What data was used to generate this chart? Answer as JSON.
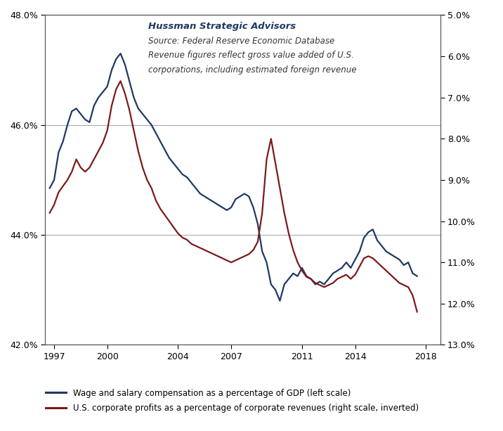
{
  "title_line1": "Hussman Strategic Advisors",
  "title_line2": "Source: Federal Reserve Economic Database",
  "title_line3": "Revenue figures reflect gross value added of U.S.",
  "title_line4": "corporations, including estimated foreign revenue",
  "left_ylim": [
    42.0,
    48.0
  ],
  "left_yticks": [
    42.0,
    44.0,
    46.0,
    48.0
  ],
  "right_yticks": [
    5.0,
    6.0,
    7.0,
    8.0,
    9.0,
    10.0,
    11.0,
    12.0,
    13.0
  ],
  "xticks": [
    1997,
    2000,
    2004,
    2007,
    2011,
    2014,
    2018
  ],
  "xlim": [
    1996.5,
    2018.8
  ],
  "blue_color": "#1F3864",
  "red_color": "#7B1A1A",
  "legend_label_blue": "Wage and salary compensation as a percentage of GDP (left scale)",
  "legend_label_red": "U.S. corporate profits as a percentage of corporate revenues (right scale, inverted)",
  "grid_color": "#AAAAAA",
  "bg_color": "#FFFFFF",
  "blue_data": {
    "x": [
      1996.75,
      1997.0,
      1997.25,
      1997.5,
      1997.75,
      1998.0,
      1998.25,
      1998.5,
      1998.75,
      1999.0,
      1999.25,
      1999.5,
      1999.75,
      2000.0,
      2000.25,
      2000.5,
      2000.75,
      2001.0,
      2001.25,
      2001.5,
      2001.75,
      2002.0,
      2002.25,
      2002.5,
      2002.75,
      2003.0,
      2003.25,
      2003.5,
      2003.75,
      2004.0,
      2004.25,
      2004.5,
      2004.75,
      2005.0,
      2005.25,
      2005.5,
      2005.75,
      2006.0,
      2006.25,
      2006.5,
      2006.75,
      2007.0,
      2007.25,
      2007.5,
      2007.75,
      2008.0,
      2008.25,
      2008.5,
      2008.75,
      2009.0,
      2009.25,
      2009.5,
      2009.75,
      2010.0,
      2010.25,
      2010.5,
      2010.75,
      2011.0,
      2011.25,
      2011.5,
      2011.75,
      2012.0,
      2012.25,
      2012.5,
      2012.75,
      2013.0,
      2013.25,
      2013.5,
      2013.75,
      2014.0,
      2014.25,
      2014.5,
      2014.75,
      2015.0,
      2015.25,
      2015.5,
      2015.75,
      2016.0,
      2016.25,
      2016.5,
      2016.75,
      2017.0,
      2017.25,
      2017.5
    ],
    "y": [
      44.85,
      45.0,
      45.5,
      45.7,
      46.0,
      46.25,
      46.3,
      46.2,
      46.1,
      46.05,
      46.35,
      46.5,
      46.6,
      46.7,
      47.0,
      47.2,
      47.3,
      47.1,
      46.8,
      46.5,
      46.3,
      46.2,
      46.1,
      46.0,
      45.85,
      45.7,
      45.55,
      45.4,
      45.3,
      45.2,
      45.1,
      45.05,
      44.95,
      44.85,
      44.75,
      44.7,
      44.65,
      44.6,
      44.55,
      44.5,
      44.45,
      44.5,
      44.65,
      44.7,
      44.75,
      44.7,
      44.5,
      44.2,
      43.7,
      43.5,
      43.1,
      43.0,
      42.8,
      43.1,
      43.2,
      43.3,
      43.25,
      43.4,
      43.25,
      43.2,
      43.1,
      43.15,
      43.1,
      43.2,
      43.3,
      43.35,
      43.4,
      43.5,
      43.4,
      43.55,
      43.7,
      43.95,
      44.05,
      44.1,
      43.9,
      43.8,
      43.7,
      43.65,
      43.6,
      43.55,
      43.45,
      43.5,
      43.3,
      43.25
    ]
  },
  "red_data": {
    "x": [
      1996.75,
      1997.0,
      1997.25,
      1997.5,
      1997.75,
      1998.0,
      1998.25,
      1998.5,
      1998.75,
      1999.0,
      1999.25,
      1999.5,
      1999.75,
      2000.0,
      2000.25,
      2000.5,
      2000.75,
      2001.0,
      2001.25,
      2001.5,
      2001.75,
      2002.0,
      2002.25,
      2002.5,
      2002.75,
      2003.0,
      2003.25,
      2003.5,
      2003.75,
      2004.0,
      2004.25,
      2004.5,
      2004.75,
      2005.0,
      2005.25,
      2005.5,
      2005.75,
      2006.0,
      2006.25,
      2006.5,
      2006.75,
      2007.0,
      2007.25,
      2007.5,
      2007.75,
      2008.0,
      2008.25,
      2008.5,
      2008.75,
      2009.0,
      2009.25,
      2009.5,
      2009.75,
      2010.0,
      2010.25,
      2010.5,
      2010.75,
      2011.0,
      2011.25,
      2011.5,
      2011.75,
      2012.0,
      2012.25,
      2012.5,
      2012.75,
      2013.0,
      2013.25,
      2013.5,
      2013.75,
      2014.0,
      2014.25,
      2014.5,
      2014.75,
      2015.0,
      2015.25,
      2015.5,
      2015.75,
      2016.0,
      2016.25,
      2016.5,
      2016.75,
      2017.0,
      2017.25,
      2017.5
    ],
    "y": [
      9.8,
      9.6,
      9.3,
      9.15,
      9.0,
      8.8,
      8.5,
      8.7,
      8.8,
      8.7,
      8.5,
      8.3,
      8.1,
      7.8,
      7.2,
      6.8,
      6.6,
      6.9,
      7.3,
      7.8,
      8.3,
      8.7,
      9.0,
      9.2,
      9.5,
      9.7,
      9.85,
      10.0,
      10.15,
      10.3,
      10.4,
      10.45,
      10.55,
      10.6,
      10.65,
      10.7,
      10.75,
      10.8,
      10.85,
      10.9,
      10.95,
      11.0,
      10.95,
      10.9,
      10.85,
      10.8,
      10.7,
      10.5,
      9.8,
      8.5,
      8.0,
      8.6,
      9.2,
      9.8,
      10.3,
      10.7,
      11.0,
      11.2,
      11.35,
      11.4,
      11.5,
      11.55,
      11.6,
      11.55,
      11.5,
      11.4,
      11.35,
      11.3,
      11.4,
      11.3,
      11.1,
      10.9,
      10.85,
      10.9,
      11.0,
      11.1,
      11.2,
      11.3,
      11.4,
      11.5,
      11.55,
      11.6,
      11.8,
      12.2
    ]
  }
}
